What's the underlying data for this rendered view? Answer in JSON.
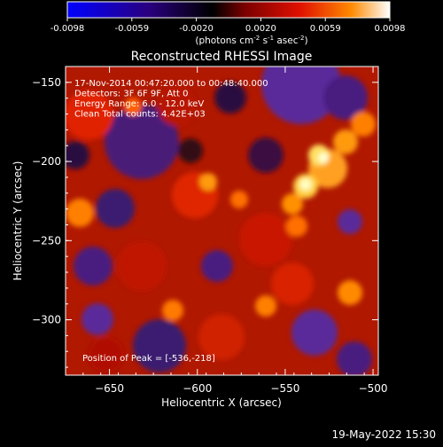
{
  "colorbar": {
    "ticks": [
      "-0.0098",
      "-0.0059",
      "-0.0020",
      "0.0020",
      "0.0059",
      "0.0098"
    ],
    "units_prefix": "(photons cm",
    "units_exp1": "-2",
    "units_mid": " s",
    "units_exp2": "-1",
    "units_mid2": " asec",
    "units_exp3": "-2",
    "units_suffix": ")",
    "colors": [
      "#0000ff",
      "#2a0080",
      "#000000",
      "#7a0000",
      "#e01000",
      "#ff8a00",
      "#ffffff"
    ]
  },
  "plot": {
    "title": "Reconstructed RHESSI Image",
    "info_lines": [
      "17-Nov-2014 00:47:20.000 to 00:48:40.000",
      "Detectors: 3F 6F 9F, Att 0",
      "Energy Range: 6.0 - 12.0 keV",
      "Clean     Total counts: 4.42E+03"
    ],
    "peak_label": "Position of Peak = [-536,-218]",
    "xlabel": "Heliocentric X (arcsec)",
    "ylabel": "Heliocentric Y (arcsec)",
    "x_ticks": [
      -650,
      -600,
      -550,
      -500
    ],
    "y_ticks": [
      -150,
      -200,
      -250,
      -300
    ],
    "x_range": [
      -675,
      -497
    ],
    "y_range": [
      -335,
      -140
    ],
    "peak_position": [
      -536,
      -218
    ]
  },
  "footer": {
    "timestamp": "19-May-2022 15:30"
  }
}
